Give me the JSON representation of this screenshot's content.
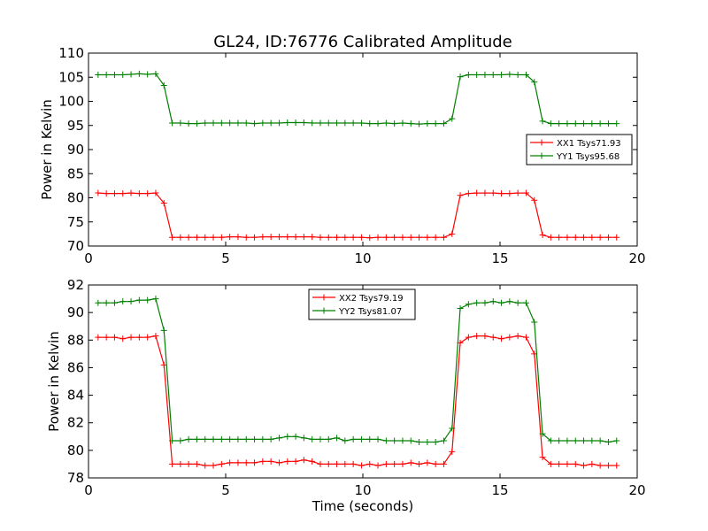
{
  "figure": {
    "title": "GL24, ID:76776 Calibrated Amplitude",
    "shared_xlabel": "Time (seconds)"
  },
  "chart_data": [
    {
      "type": "line",
      "ylabel": "Power in Kelvin",
      "xlabel": "",
      "xlim": [
        0,
        20
      ],
      "ylim": [
        70,
        110
      ],
      "xticks": [
        0,
        5,
        10,
        15,
        20
      ],
      "yticks": [
        70,
        75,
        80,
        85,
        90,
        95,
        100,
        105,
        110
      ],
      "legend_position": "center-right",
      "x": [
        0.35,
        0.65,
        0.95,
        1.25,
        1.55,
        1.85,
        2.15,
        2.45,
        2.75,
        3.05,
        3.35,
        3.65,
        3.95,
        4.25,
        4.55,
        4.85,
        5.15,
        5.45,
        5.75,
        6.05,
        6.35,
        6.65,
        6.95,
        7.25,
        7.55,
        7.85,
        8.15,
        8.45,
        8.75,
        9.05,
        9.35,
        9.65,
        9.95,
        10.25,
        10.55,
        10.85,
        11.15,
        11.45,
        11.75,
        12.05,
        12.35,
        12.65,
        12.95,
        13.25,
        13.55,
        13.85,
        14.15,
        14.45,
        14.75,
        15.05,
        15.35,
        15.65,
        15.95,
        16.25,
        16.55,
        16.85,
        17.15,
        17.45,
        17.75,
        18.05,
        18.35,
        18.65,
        18.95,
        19.25
      ],
      "series": [
        {
          "name": "XX1 Tsys71.93",
          "color": "#ff0000",
          "values": [
            81.0,
            80.9,
            80.9,
            80.9,
            81.0,
            80.9,
            80.9,
            81.0,
            78.9,
            71.8,
            71.8,
            71.8,
            71.8,
            71.8,
            71.8,
            71.8,
            71.9,
            71.9,
            71.8,
            71.8,
            71.9,
            71.9,
            71.9,
            71.9,
            71.9,
            71.9,
            71.9,
            71.8,
            71.8,
            71.8,
            71.8,
            71.8,
            71.8,
            71.7,
            71.8,
            71.8,
            71.8,
            71.8,
            71.8,
            71.8,
            71.8,
            71.8,
            71.8,
            72.5,
            80.5,
            80.9,
            81.0,
            81.0,
            81.0,
            80.9,
            80.9,
            81.0,
            81.0,
            79.5,
            72.3,
            71.8,
            71.8,
            71.8,
            71.8,
            71.8,
            71.8,
            71.8,
            71.8,
            71.8
          ]
        },
        {
          "name": "YY1 Tsys95.68",
          "color": "#008000",
          "values": [
            105.5,
            105.5,
            105.5,
            105.5,
            105.6,
            105.7,
            105.6,
            105.7,
            103.3,
            95.5,
            95.5,
            95.4,
            95.4,
            95.5,
            95.5,
            95.5,
            95.5,
            95.5,
            95.5,
            95.4,
            95.5,
            95.5,
            95.5,
            95.6,
            95.6,
            95.6,
            95.5,
            95.5,
            95.5,
            95.5,
            95.5,
            95.5,
            95.5,
            95.4,
            95.4,
            95.5,
            95.4,
            95.5,
            95.4,
            95.3,
            95.4,
            95.4,
            95.4,
            96.4,
            105.1,
            105.5,
            105.5,
            105.5,
            105.5,
            105.5,
            105.6,
            105.5,
            105.5,
            104.0,
            95.9,
            95.4,
            95.4,
            95.4,
            95.4,
            95.4,
            95.4,
            95.4,
            95.4,
            95.4
          ]
        }
      ]
    },
    {
      "type": "line",
      "ylabel": "Power in Kelvin",
      "xlabel": "Time (seconds)",
      "xlim": [
        0,
        20
      ],
      "ylim": [
        78,
        92
      ],
      "xticks": [
        0,
        5,
        10,
        15,
        20
      ],
      "yticks": [
        78,
        80,
        82,
        84,
        86,
        88,
        90,
        92
      ],
      "legend_position": "upper-center",
      "x": [
        0.35,
        0.65,
        0.95,
        1.25,
        1.55,
        1.85,
        2.15,
        2.45,
        2.75,
        3.05,
        3.35,
        3.65,
        3.95,
        4.25,
        4.55,
        4.85,
        5.15,
        5.45,
        5.75,
        6.05,
        6.35,
        6.65,
        6.95,
        7.25,
        7.55,
        7.85,
        8.15,
        8.45,
        8.75,
        9.05,
        9.35,
        9.65,
        9.95,
        10.25,
        10.55,
        10.85,
        11.15,
        11.45,
        11.75,
        12.05,
        12.35,
        12.65,
        12.95,
        13.25,
        13.55,
        13.85,
        14.15,
        14.45,
        14.75,
        15.05,
        15.35,
        15.65,
        15.95,
        16.25,
        16.55,
        16.85,
        17.15,
        17.45,
        17.75,
        18.05,
        18.35,
        18.65,
        18.95,
        19.25
      ],
      "series": [
        {
          "name": "XX2 Tsys79.19",
          "color": "#ff0000",
          "values": [
            88.2,
            88.2,
            88.2,
            88.1,
            88.2,
            88.2,
            88.2,
            88.3,
            86.2,
            79.0,
            79.0,
            79.0,
            79.0,
            78.9,
            78.9,
            79.0,
            79.1,
            79.1,
            79.1,
            79.1,
            79.2,
            79.2,
            79.1,
            79.2,
            79.2,
            79.3,
            79.2,
            79.0,
            79.0,
            79.0,
            79.0,
            79.0,
            78.9,
            79.0,
            78.9,
            79.0,
            79.0,
            79.0,
            79.1,
            79.0,
            79.1,
            79.0,
            79.0,
            79.9,
            87.8,
            88.2,
            88.3,
            88.3,
            88.2,
            88.1,
            88.2,
            88.3,
            88.2,
            87.0,
            79.5,
            79.0,
            79.0,
            79.0,
            79.0,
            78.9,
            79.0,
            78.9,
            78.9,
            78.9
          ]
        },
        {
          "name": "YY2 Tsys81.07",
          "color": "#008000",
          "values": [
            90.7,
            90.7,
            90.7,
            90.8,
            90.8,
            90.9,
            90.9,
            91.0,
            88.7,
            80.7,
            80.7,
            80.8,
            80.8,
            80.8,
            80.8,
            80.8,
            80.8,
            80.8,
            80.8,
            80.8,
            80.8,
            80.8,
            80.9,
            81.0,
            81.0,
            80.9,
            80.8,
            80.8,
            80.8,
            80.9,
            80.7,
            80.8,
            80.8,
            80.8,
            80.8,
            80.7,
            80.7,
            80.7,
            80.7,
            80.6,
            80.6,
            80.6,
            80.7,
            81.6,
            90.3,
            90.6,
            90.7,
            90.7,
            90.8,
            90.7,
            90.8,
            90.7,
            90.7,
            89.3,
            81.2,
            80.7,
            80.7,
            80.7,
            80.7,
            80.7,
            80.7,
            80.7,
            80.6,
            80.7
          ]
        }
      ]
    }
  ]
}
